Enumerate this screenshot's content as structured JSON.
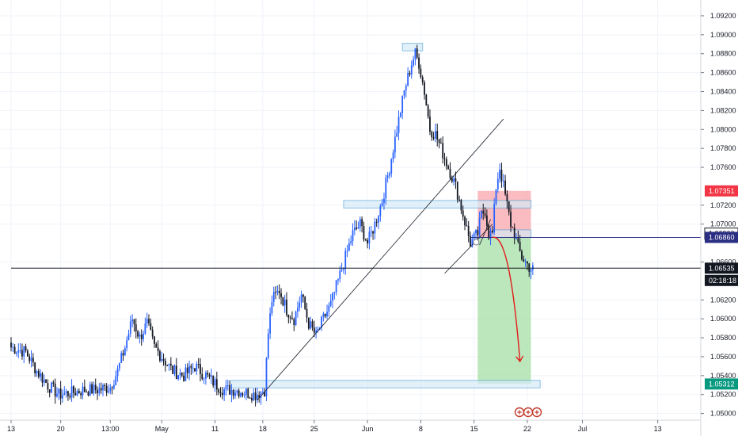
{
  "chart_data": {
    "type": "candlestick",
    "symbol_pair_hint": "",
    "price_axis": {
      "ylim": [
        1.0493,
        1.093
      ],
      "ticks": [
        "1.09200",
        "1.09000",
        "1.08800",
        "1.08600",
        "1.08400",
        "1.08200",
        "1.08000",
        "1.07800",
        "1.07600",
        "1.07200",
        "1.07000",
        "1.06600",
        "1.06200",
        "1.06000",
        "1.05800",
        "1.05600",
        "1.05400",
        "1.05200",
        "1.05000"
      ],
      "tick_values": [
        1.092,
        1.09,
        1.088,
        1.086,
        1.084,
        1.082,
        1.08,
        1.078,
        1.076,
        1.072,
        1.07,
        1.066,
        1.062,
        1.06,
        1.058,
        1.056,
        1.054,
        1.052,
        1.05
      ]
    },
    "time_axis": {
      "labels": [
        "13",
        "20",
        "13:00",
        "May",
        "11",
        "18",
        "25",
        "Jun",
        "8",
        "15",
        "22",
        "Jul",
        "13"
      ],
      "label_bar_index": [
        0,
        27,
        54,
        82,
        111,
        137,
        165,
        194,
        223,
        252,
        281,
        311,
        352
      ]
    },
    "price_tags": [
      {
        "label": "1.07351",
        "value": 1.07351,
        "color": "#f23645",
        "text_color": "#ffffff"
      },
      {
        "label": "1.06900",
        "value": 1.069,
        "color": "#ffffff",
        "text_color": "#131722",
        "border": "#131722"
      },
      {
        "label": "1.06860",
        "value": 1.0686,
        "color": "#2a2e83",
        "text_color": "#ffffff"
      },
      {
        "label": "1.06535",
        "value": 1.06535,
        "color": "#131722",
        "text_color": "#ffffff"
      },
      {
        "label": "02:18:18",
        "value": 1.06405,
        "color": "#131722",
        "text_color": "#ffffff"
      },
      {
        "label": "1.05312",
        "value": 1.05312,
        "color": "#089981",
        "text_color": "#ffffff"
      }
    ],
    "candle_anchors": [
      [
        0,
        1.057
      ],
      [
        8,
        1.0565
      ],
      [
        14,
        1.0545
      ],
      [
        20,
        1.053
      ],
      [
        26,
        1.052
      ],
      [
        33,
        1.0522
      ],
      [
        40,
        1.0525
      ],
      [
        47,
        1.0525
      ],
      [
        54,
        1.0528
      ],
      [
        58,
        1.0545
      ],
      [
        62,
        1.057
      ],
      [
        66,
        1.06
      ],
      [
        70,
        1.058
      ],
      [
        74,
        1.0595
      ],
      [
        78,
        1.057
      ],
      [
        82,
        1.056
      ],
      [
        88,
        1.0545
      ],
      [
        94,
        1.054
      ],
      [
        100,
        1.055
      ],
      [
        106,
        1.054
      ],
      [
        112,
        1.053
      ],
      [
        116,
        1.0525
      ],
      [
        122,
        1.0525
      ],
      [
        128,
        1.0522
      ],
      [
        133,
        1.052
      ],
      [
        138,
        1.0525
      ],
      [
        140,
        1.0585
      ],
      [
        142,
        1.062
      ],
      [
        146,
        1.063
      ],
      [
        150,
        1.061
      ],
      [
        154,
        1.06
      ],
      [
        158,
        1.0625
      ],
      [
        162,
        1.0595
      ],
      [
        166,
        1.0582
      ],
      [
        170,
        1.06
      ],
      [
        174,
        1.0615
      ],
      [
        178,
        1.064
      ],
      [
        182,
        1.0665
      ],
      [
        186,
        1.069
      ],
      [
        190,
        1.07
      ],
      [
        194,
        1.068
      ],
      [
        198,
        1.07
      ],
      [
        202,
        1.0725
      ],
      [
        206,
        1.076
      ],
      [
        210,
        1.08
      ],
      [
        214,
        1.084
      ],
      [
        218,
        1.087
      ],
      [
        220,
        1.088
      ],
      [
        222,
        1.087
      ],
      [
        225,
        1.084
      ],
      [
        228,
        1.08
      ],
      [
        231,
        1.0795
      ],
      [
        234,
        1.078
      ],
      [
        238,
        1.076
      ],
      [
        242,
        1.074
      ],
      [
        246,
        1.071
      ],
      [
        250,
        1.068
      ],
      [
        254,
        1.069
      ],
      [
        256,
        1.071
      ],
      [
        258,
        1.0715
      ],
      [
        260,
        1.069
      ],
      [
        262,
        1.069
      ],
      [
        264,
        1.074
      ],
      [
        266,
        1.076
      ],
      [
        268,
        1.074
      ],
      [
        270,
        1.072
      ],
      [
        272,
        1.07
      ],
      [
        274,
        1.069
      ],
      [
        276,
        1.0675
      ],
      [
        278,
        1.0665
      ],
      [
        280,
        1.066
      ],
      [
        282,
        1.0655
      ],
      [
        284,
        1.0652
      ]
    ],
    "annotations": {
      "boxes": [
        {
          "name": "top-zone",
          "x0": 213,
          "x1": 224,
          "y0": 1.0883,
          "y1": 1.0891
        },
        {
          "name": "resistance-zone",
          "x0": 181,
          "x1": 283,
          "y0": 1.0717,
          "y1": 1.0725
        },
        {
          "name": "support-zone",
          "x0": 119,
          "x1": 288,
          "y0": 1.0527,
          "y1": 1.0535
        },
        {
          "name": "entry-zone",
          "x0": 262,
          "x1": 283,
          "y0": 1.0686,
          "y1": 1.0694
        }
      ],
      "short_position": {
        "x0": 254,
        "x1": 283,
        "entry": 1.0686,
        "stop": 1.07351,
        "target": 1.05312
      },
      "trend_lines": [
        {
          "name": "rising-trendline",
          "from": [
            134,
            1.0514
          ],
          "to": [
            268,
            1.0811
          ]
        },
        {
          "name": "channel-base-line",
          "from": [
            236,
            1.0648
          ],
          "to": [
            262,
            1.07
          ]
        },
        {
          "name": "break-line",
          "from": [
            255,
            1.0678
          ],
          "to": [
            261,
            1.0705
          ]
        }
      ],
      "horizontal_lines": [
        {
          "name": "entry-level-line",
          "value": 1.0686,
          "x0": 250
        },
        {
          "name": "current-price-line",
          "value": 1.06535,
          "x0": 0
        }
      ],
      "projection_arrow": {
        "from": [
          262,
          1.0686
        ],
        "to": [
          277,
          1.0555
        ]
      }
    }
  },
  "icons": [
    "event-marker-icon",
    "event-marker-icon",
    "event-marker-icon"
  ],
  "colors": {
    "up": "#2962ff",
    "down": "#131722",
    "axis_text": "#131722",
    "stop_fill": "#f8a5ab",
    "target_fill": "#a5dfa5",
    "zone_fill": "#d6eaf7",
    "zone_border": "#5aa7d8"
  }
}
